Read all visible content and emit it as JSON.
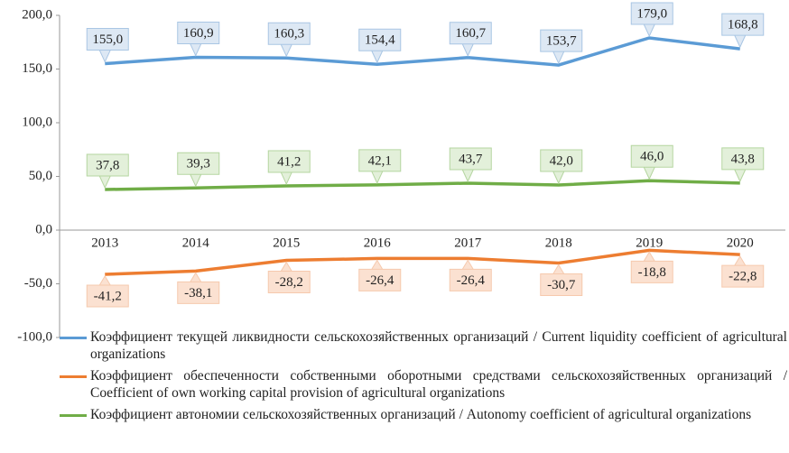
{
  "chart_data": {
    "type": "line",
    "categories": [
      "2013",
      "2014",
      "2015",
      "2016",
      "2017",
      "2018",
      "2019",
      "2020"
    ],
    "ylim": [
      -100,
      200
    ],
    "yticks": [
      {
        "value": -100,
        "label": "-100,0"
      },
      {
        "value": -50,
        "label": "-50,0"
      },
      {
        "value": 0,
        "label": "0,0"
      },
      {
        "value": 50,
        "label": "50,0"
      },
      {
        "value": 100,
        "label": "100,0"
      },
      {
        "value": 150,
        "label": "150,0"
      },
      {
        "value": 200,
        "label": "200,0"
      }
    ],
    "grid": false,
    "legend": "bottom",
    "series": [
      {
        "name": "Коэффициент текущей ликвидности сельскохозяйственных организаций / Current liquidity coefficient of agricultural organizations",
        "color": "#5b9bd5",
        "label_fill": "#dde8f4",
        "label_stroke": "#a9c6e4",
        "label_side": "above",
        "values": [
          155.0,
          160.9,
          160.3,
          154.4,
          160.7,
          153.7,
          179.0,
          168.8
        ],
        "value_labels": [
          "155,0",
          "160,9",
          "160,3",
          "154,4",
          "160,7",
          "153,7",
          "179,0",
          "168,8"
        ]
      },
      {
        "name": "Коэффициент обеспеченности собственными оборотными средствами сельскохозяйственных организаций / Coefficient of own working capital provision of agricultural organizations",
        "color": "#ed7d31",
        "label_fill": "#fbe1d1",
        "label_stroke": "#f6c9ad",
        "label_side": "below",
        "values": [
          -41.2,
          -38.1,
          -28.2,
          -26.4,
          -26.4,
          -30.7,
          -18.8,
          -22.8
        ],
        "value_labels": [
          "-41,2",
          "-38,1",
          "-28,2",
          "-26,4",
          "-26,4",
          "-30,7",
          "-18,8",
          "-22,8"
        ]
      },
      {
        "name": "Коэффициент автономии сельскохозяйственных организаций / Autonomy coefficient of agricultural organizations",
        "color": "#70ad47",
        "label_fill": "#e3f0da",
        "label_stroke": "#b5d6a0",
        "label_side": "above",
        "values": [
          37.8,
          39.3,
          41.2,
          42.1,
          43.7,
          42.0,
          46.0,
          43.8
        ],
        "value_labels": [
          "37,8",
          "39,3",
          "41,2",
          "42,1",
          "43,7",
          "42,0",
          "46,0",
          "43,8"
        ]
      }
    ]
  }
}
